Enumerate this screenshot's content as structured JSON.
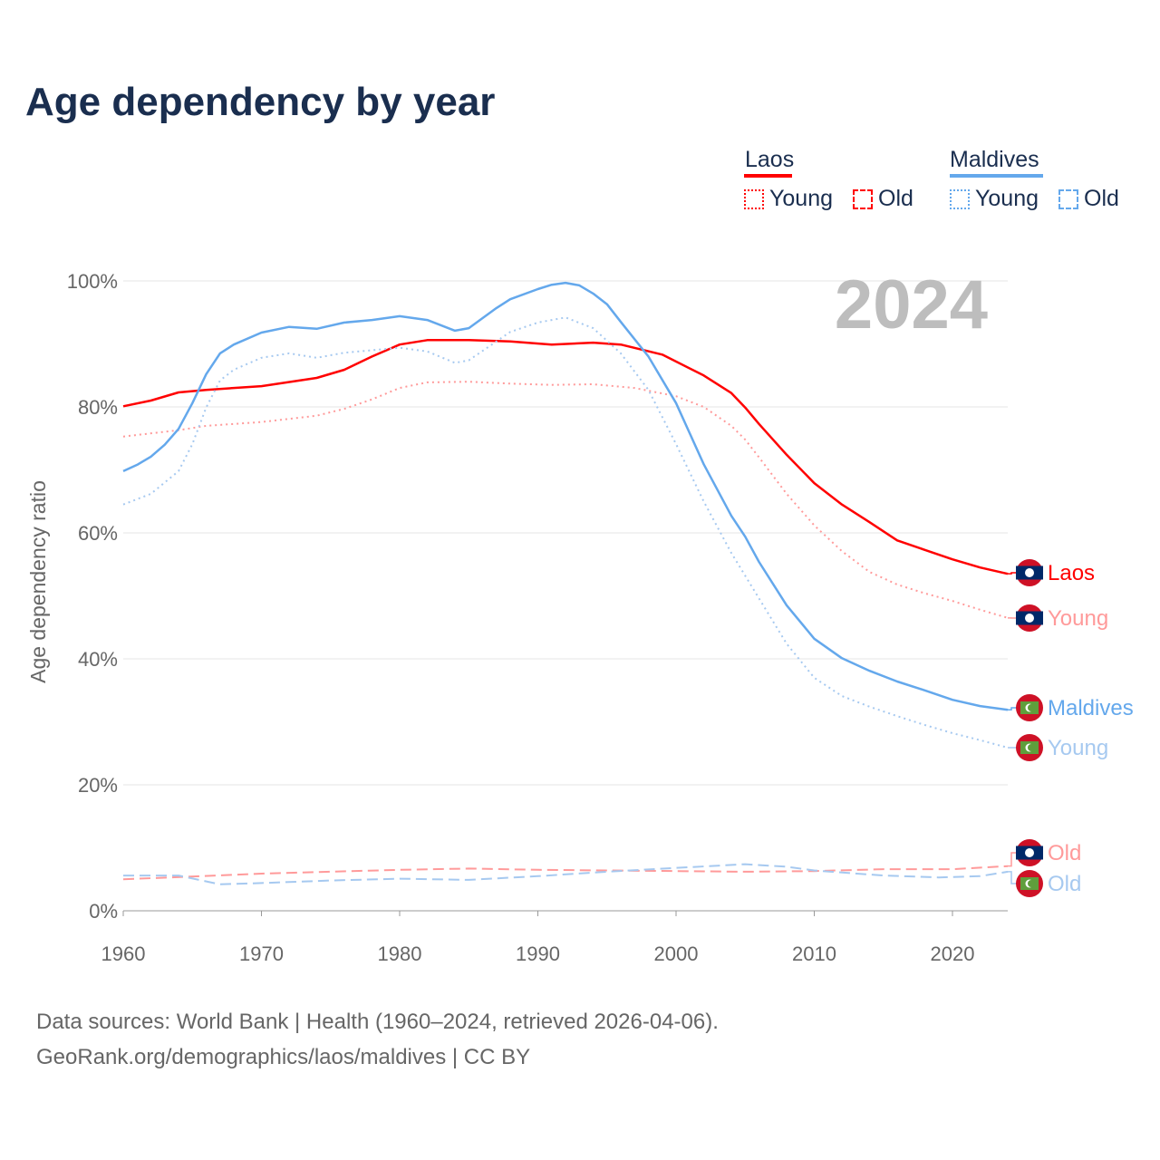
{
  "chart_data": {
    "type": "line",
    "title": "Age dependency by year",
    "ylabel": "Age dependency ratio",
    "xlabel": "",
    "xlim": [
      1960,
      2024
    ],
    "ylim": [
      0,
      100
    ],
    "x_ticks": [
      "1960",
      "1970",
      "1980",
      "1990",
      "2000",
      "2010",
      "2020"
    ],
    "y_ticks": [
      "0%",
      "20%",
      "40%",
      "60%",
      "80%",
      "100%"
    ],
    "year_label": "2024",
    "legend": {
      "placement": "top-right",
      "groups": [
        {
          "name": "Laos",
          "color": "#ff0000",
          "items": [
            "Young",
            "Old"
          ]
        },
        {
          "name": "Maldives",
          "color": "#64a8ec",
          "items": [
            "Young",
            "Old"
          ]
        }
      ]
    },
    "series": [
      {
        "name": "Laos",
        "label": "Laos",
        "country": "Laos",
        "kind": "total",
        "color": "#ff0000",
        "dash": "",
        "x": [
          1960,
          1962,
          1964,
          1966,
          1970,
          1974,
          1976,
          1978,
          1980,
          1982,
          1985,
          1988,
          1991,
          1994,
          1996,
          1999,
          2002,
          2004,
          2005,
          2006,
          2008,
          2010,
          2012,
          2014,
          2016,
          2018,
          2020,
          2022,
          2024
        ],
        "y": [
          80.1,
          81,
          82.3,
          82.7,
          83.3,
          84.6,
          85.9,
          88,
          89.9,
          90.6,
          90.6,
          90.4,
          89.9,
          90.2,
          89.9,
          88.3,
          85,
          82.2,
          79.9,
          77.3,
          72.4,
          67.9,
          64.5,
          61.7,
          58.8,
          57.3,
          55.8,
          54.5,
          53.5
        ]
      },
      {
        "name": "Laos Young",
        "label": "Young",
        "country": "Laos",
        "kind": "young",
        "color": "#ff9a9a",
        "dash": "2,4",
        "x": [
          1960,
          1964,
          1966,
          1970,
          1974,
          1976,
          1978,
          1980,
          1982,
          1985,
          1988,
          1991,
          1994,
          1997,
          2000,
          2002,
          2004,
          2005,
          2006,
          2008,
          2010,
          2012,
          2014,
          2016,
          2018,
          2020,
          2022,
          2024
        ],
        "y": [
          75.3,
          76.3,
          77,
          77.6,
          78.6,
          79.7,
          81.2,
          83,
          83.9,
          84,
          83.7,
          83.5,
          83.6,
          83,
          81.7,
          80,
          77,
          74.8,
          72,
          66.2,
          61.2,
          57.1,
          53.8,
          51.8,
          50.4,
          49.2,
          47.8,
          46.5
        ]
      },
      {
        "name": "Laos Old",
        "label": "Old",
        "country": "Laos",
        "kind": "old",
        "color": "#ff9a9a",
        "dash": "12,6",
        "x": [
          1960,
          1970,
          1980,
          1985,
          1990,
          2000,
          2005,
          2010,
          2015,
          2020,
          2024
        ],
        "y": [
          5.0,
          5.9,
          6.5,
          6.7,
          6.5,
          6.3,
          6.2,
          6.3,
          6.6,
          6.6,
          7.1
        ]
      },
      {
        "name": "Maldives",
        "label": "Maldives",
        "country": "Maldives",
        "kind": "total",
        "color": "#64a8ec",
        "dash": "",
        "x": [
          1960,
          1961,
          1962,
          1963,
          1964,
          1965,
          1966,
          1967,
          1968,
          1970,
          1972,
          1974,
          1976,
          1978,
          1980,
          1982,
          1984,
          1985,
          1987,
          1988,
          1990,
          1991,
          1992,
          1993,
          1994,
          1995,
          1996,
          1998,
          2000,
          2002,
          2004,
          2005,
          2006,
          2008,
          2010,
          2012,
          2014,
          2016,
          2018,
          2020,
          2022,
          2024
        ],
        "y": [
          69.8,
          70.8,
          72.1,
          74,
          76.5,
          80.6,
          85.2,
          88.5,
          89.9,
          91.8,
          92.7,
          92.4,
          93.4,
          93.8,
          94.4,
          93.8,
          92.1,
          92.5,
          95.7,
          97.1,
          98.7,
          99.4,
          99.7,
          99.3,
          98,
          96.3,
          93.5,
          88,
          80.6,
          70.9,
          62.7,
          59.4,
          55.4,
          48.5,
          43.2,
          40.1,
          38.1,
          36.4,
          35,
          33.5,
          32.5,
          31.9
        ]
      },
      {
        "name": "Maldives Young",
        "label": "Young",
        "country": "Maldives",
        "kind": "young",
        "color": "#a6c9f0",
        "dash": "2,4",
        "x": [
          1960,
          1962,
          1964,
          1965,
          1966,
          1967,
          1968,
          1970,
          1972,
          1974,
          1976,
          1980,
          1982,
          1984,
          1985,
          1987,
          1988,
          1990,
          1992,
          1994,
          1996,
          1998,
          2000,
          2002,
          2004,
          2006,
          2008,
          2010,
          2012,
          2014,
          2016,
          2018,
          2020,
          2022,
          2024
        ],
        "y": [
          64.5,
          66.2,
          69.8,
          74.1,
          79.9,
          84.2,
          85.9,
          87.8,
          88.5,
          87.8,
          88.6,
          89.4,
          88.8,
          87,
          87.4,
          90.4,
          91.9,
          93.4,
          94.2,
          92.5,
          88.5,
          82.7,
          74.1,
          65,
          56.8,
          49.6,
          42.4,
          37,
          34.1,
          32.4,
          30.9,
          29.5,
          28.2,
          27.1,
          25.9
        ]
      },
      {
        "name": "Maldives Old",
        "label": "Old",
        "country": "Maldives",
        "kind": "old",
        "color": "#a6c9f0",
        "dash": "12,6",
        "x": [
          1960,
          1964,
          1967,
          1970,
          1975,
          1980,
          1985,
          1990,
          1995,
          2000,
          2005,
          2008,
          2010,
          2015,
          2019,
          2022,
          2024
        ],
        "y": [
          5.6,
          5.6,
          4.2,
          4.4,
          4.8,
          5.1,
          4.9,
          5.5,
          6.2,
          6.8,
          7.4,
          7.0,
          6.4,
          5.6,
          5.3,
          5.5,
          6.2
        ]
      }
    ]
  },
  "source_line1": "Data sources: World Bank | Health (1960–2024, retrieved 2026-04-06).",
  "source_line2": "GeoRank.org/demographics/laos/maldives | CC BY"
}
